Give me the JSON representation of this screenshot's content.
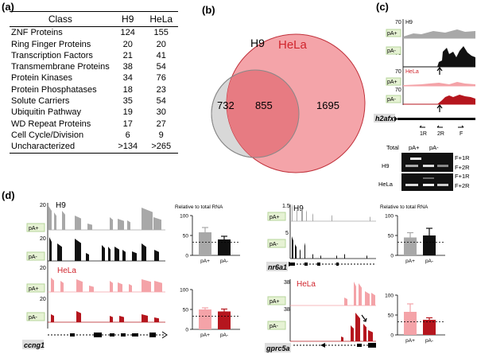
{
  "panel_labels": {
    "a": "(a)",
    "b": "(b)",
    "c": "(c)",
    "d": "(d)"
  },
  "table": {
    "headers": [
      "Class",
      "H9",
      "HeLa"
    ],
    "rows": [
      [
        "ZNF Proteins",
        "124",
        "155"
      ],
      [
        "Ring Finger Proteins",
        "20",
        "20"
      ],
      [
        "Transcription Factors",
        "21",
        "41"
      ],
      [
        "Transmembrane Proteins",
        "38",
        "54"
      ],
      [
        "Protein Kinases",
        "34",
        "76"
      ],
      [
        "Protein Phosphatases",
        "18",
        "23"
      ],
      [
        "Solute Carriers",
        "35",
        "54"
      ],
      [
        "Ubiquitin Pathway",
        "19",
        "30"
      ],
      [
        "WD Repeat Proteins",
        "17",
        "27"
      ],
      [
        "Cell Cycle/Division",
        "6",
        "9"
      ],
      [
        "Uncharacterized",
        ">134",
        ">265"
      ]
    ]
  },
  "venn": {
    "left_label": "H9",
    "right_label": "HeLa",
    "left_only": "732",
    "overlap": "855",
    "right_only": "1695",
    "colors": {
      "left": "#d8d8d8",
      "right": "#f39aa0",
      "overlap": "#ea7f86",
      "hela_text": "#d0242c"
    }
  },
  "panel_c": {
    "scale": "70",
    "h9_label": "H9",
    "hela_label": "HeLa",
    "track_labels": [
      "pA+",
      "pA-",
      "pA+",
      "pA-"
    ],
    "gene": "h2afx",
    "primers": [
      "1R",
      "2R",
      "F"
    ],
    "gel_headers": [
      "Total",
      "pA+",
      "pA-"
    ],
    "gel_rows": [
      "H9",
      "HeLa"
    ],
    "gel_products": [
      "F+1R",
      "F+2R"
    ]
  },
  "panel_d": {
    "left": {
      "scale_top": "20",
      "scale_bot": "20",
      "h9_label": "H9",
      "hela_label": "HeLa",
      "track_labels": [
        "pA+",
        "pA-",
        "pA+",
        "pA-"
      ],
      "gene": "ccng1",
      "bar_title": "Relative to total RNA",
      "bar_h9": {
        "categories": [
          "pA+",
          "pA-"
        ],
        "values": [
          58,
          40
        ],
        "errors": [
          12,
          8
        ],
        "ylim": [
          0,
          100
        ]
      },
      "bar_hela": {
        "categories": [
          "pA+",
          "pA-"
        ],
        "values": [
          50,
          45
        ],
        "errors": [
          4,
          6
        ],
        "ylim": [
          0,
          100
        ]
      },
      "ticks": [
        "100",
        "50",
        "0"
      ]
    },
    "right": {
      "scale_top": "1.5",
      "scale_bot": "5",
      "scale_top2": "38",
      "scale_bot2": "38",
      "h9_label": "H9",
      "hela_label": "HeLa",
      "track_labels": [
        "pA+",
        "pA-",
        "pA+",
        "pA-"
      ],
      "gene_top": "nr6a1",
      "gene_bot": "gprc5a",
      "bar_title": "Relative to total RNA",
      "bar_h9": {
        "categories": [
          "pA+",
          "pA-"
        ],
        "values": [
          45,
          50
        ],
        "errors": [
          12,
          18
        ],
        "ylim": [
          0,
          100
        ]
      },
      "bar_hela": {
        "categories": [
          "pA+",
          "pA-"
        ],
        "values": [
          58,
          38
        ],
        "errors": [
          20,
          5
        ],
        "ylim": [
          0,
          100
        ]
      },
      "ticks": [
        "100",
        "50",
        "0"
      ]
    },
    "colors": {
      "h9_plus": "#a8a8a8",
      "h9_minus": "#111111",
      "hela_plus": "#f4a3a8",
      "hela_minus": "#b5161e"
    }
  }
}
